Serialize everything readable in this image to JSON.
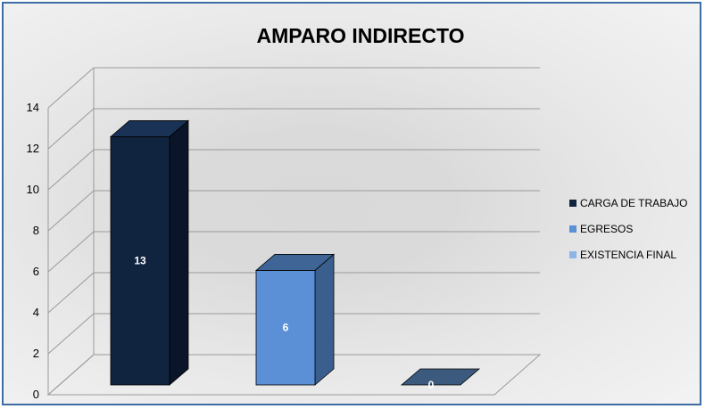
{
  "chart_data": {
    "type": "bar",
    "title": "AMPARO INDIRECTO",
    "categories": [
      "CARGA DE TRABAJO",
      "EGRESOS",
      "EXISTENCIA FINAL"
    ],
    "values": [
      13,
      6,
      0
    ],
    "data_labels": [
      "13",
      "6",
      "0"
    ],
    "ylim": [
      0,
      14
    ],
    "yticks": [
      "0",
      "2",
      "4",
      "6",
      "8",
      "10",
      "12",
      "14"
    ],
    "grid": true,
    "legend_position": "right",
    "three_d": true,
    "legend": [
      {
        "label": "CARGA DE TRABAJO",
        "color": "#10233f"
      },
      {
        "label": "EGRESOS",
        "color": "#5b8fd6"
      },
      {
        "label": "EXISTENCIA FINAL",
        "color": "#8fb4e6"
      }
    ],
    "bar_colors": [
      {
        "front": "#10233f",
        "side": "#0a1529",
        "top": "#1a3256"
      },
      {
        "front": "#5b8fd6",
        "side": "#3a5f8f",
        "top": "#3e6596"
      },
      {
        "front": "#3f5f86",
        "side": "#2c4461",
        "top": "#3b5a7e"
      }
    ]
  }
}
